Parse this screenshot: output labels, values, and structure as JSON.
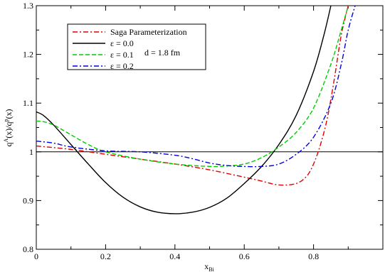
{
  "chart_data": {
    "type": "line",
    "xlim": [
      0,
      1.0
    ],
    "ylim": [
      0.8,
      1.3
    ],
    "x_ticks": [
      0,
      0.2,
      0.4,
      0.6,
      0.8
    ],
    "x_tick_labels": [
      "0",
      "0.2",
      "0.4",
      "0.6",
      "0.8"
    ],
    "y_ticks": [
      0.8,
      0.9,
      1.0,
      1.1,
      1.2,
      1.3
    ],
    "y_tick_labels": [
      "0.8",
      "0.9",
      "1",
      "1.1",
      "1.2",
      "1.3"
    ],
    "xlabel": {
      "main": "x",
      "sub": "Bi"
    },
    "ylabel": {
      "part1": "q",
      "sup1": "A",
      "part2": "(x)/q",
      "sup2": "p",
      "part3": "(x)"
    },
    "annotation": "d = 1.8 fm",
    "reference_line_y": 1.0,
    "legend_position": "top-left",
    "series": [
      {
        "name": "Saga Parameterization",
        "color": "#e00000",
        "dash": "dash-dot",
        "x": [
          0,
          0.1,
          0.2,
          0.3,
          0.4,
          0.5,
          0.6,
          0.65,
          0.7,
          0.75,
          0.78,
          0.8,
          0.82,
          0.84,
          0.86,
          0.88,
          0.9
        ],
        "y": [
          1.012,
          1.005,
          0.995,
          0.985,
          0.975,
          0.963,
          0.948,
          0.94,
          0.932,
          0.935,
          0.95,
          0.975,
          1.015,
          1.07,
          1.15,
          1.24,
          1.3
        ]
      },
      {
        "name": "ε = 0.0",
        "color": "#000000",
        "dash": "solid",
        "x": [
          0,
          0.02,
          0.05,
          0.1,
          0.15,
          0.2,
          0.25,
          0.3,
          0.35,
          0.4,
          0.45,
          0.5,
          0.55,
          0.6,
          0.65,
          0.7,
          0.75,
          0.8,
          0.83,
          0.85
        ],
        "y": [
          1.082,
          1.075,
          1.055,
          1.015,
          0.975,
          0.937,
          0.907,
          0.887,
          0.876,
          0.873,
          0.876,
          0.886,
          0.905,
          0.935,
          0.97,
          1.015,
          1.075,
          1.165,
          1.24,
          1.3
        ]
      },
      {
        "name": "ε = 0.1",
        "color": "#00cc00",
        "dash": "dash",
        "x": [
          0,
          0.02,
          0.05,
          0.1,
          0.15,
          0.2,
          0.3,
          0.4,
          0.5,
          0.55,
          0.6,
          0.65,
          0.7,
          0.75,
          0.8,
          0.85,
          0.88,
          0.9
        ],
        "y": [
          1.063,
          1.062,
          1.055,
          1.035,
          1.015,
          1.0,
          0.985,
          0.975,
          0.97,
          0.971,
          0.975,
          0.988,
          1.01,
          1.04,
          1.09,
          1.18,
          1.25,
          1.3
        ]
      },
      {
        "name": "ε = 0.2",
        "color": "#0000e0",
        "dash": "dash-dot",
        "x": [
          0,
          0.05,
          0.1,
          0.2,
          0.3,
          0.4,
          0.45,
          0.5,
          0.55,
          0.6,
          0.65,
          0.7,
          0.75,
          0.8,
          0.85,
          0.88,
          0.9,
          0.92
        ],
        "y": [
          1.022,
          1.018,
          1.01,
          1.002,
          1.0,
          0.993,
          0.986,
          0.977,
          0.972,
          0.97,
          0.97,
          0.975,
          0.995,
          1.03,
          1.1,
          1.18,
          1.25,
          1.3
        ]
      }
    ]
  }
}
